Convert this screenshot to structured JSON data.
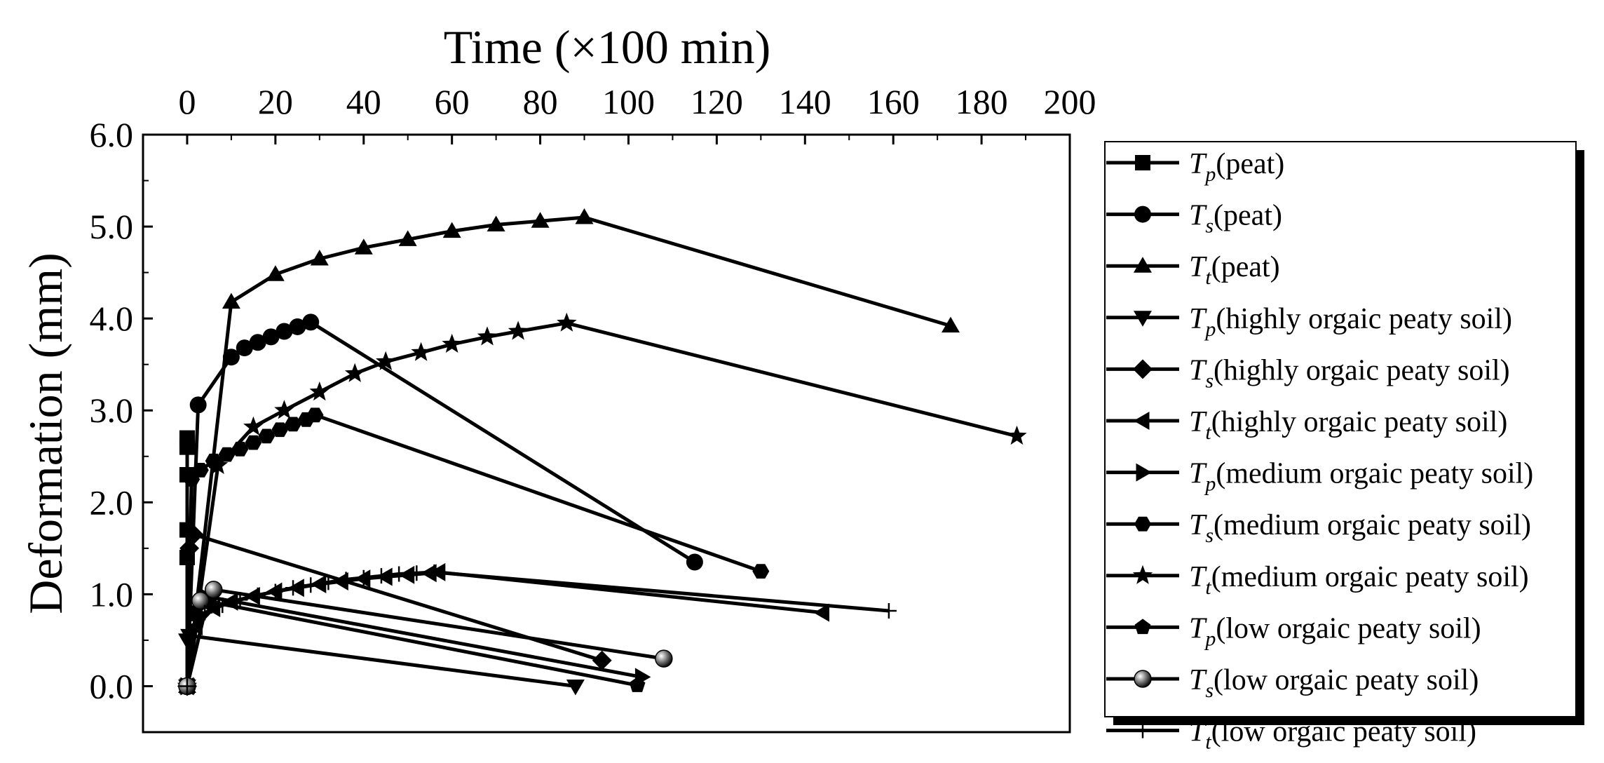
{
  "chart_data": {
    "type": "line",
    "title": "",
    "xlabel": "Time (×100 min)",
    "ylabel": "Deformation (mm)",
    "xlim": [
      -10,
      200
    ],
    "ylim": [
      -0.5,
      6.0
    ],
    "xticks": [
      0,
      20,
      40,
      60,
      80,
      100,
      120,
      140,
      160,
      180,
      200
    ],
    "xtick_labels": [
      "0",
      "20",
      "40",
      "60",
      "80",
      "100",
      "120",
      "140",
      "160",
      "180",
      "200"
    ],
    "yticks": [
      0,
      1,
      2,
      3,
      4,
      5,
      6
    ],
    "ytick_labels": [
      "0.0",
      "1.0",
      "2.0",
      "3.0",
      "4.0",
      "5.0",
      "6.0"
    ],
    "x_axis_position": "top",
    "legend_position": "right",
    "grid": false,
    "series": [
      {
        "name": "Tp(peat)",
        "symbol": "T",
        "subscript": "p",
        "label": "(peat)",
        "marker": "square",
        "x": [
          0,
          0,
          0,
          0,
          0,
          0
        ],
        "y": [
          0,
          1.4,
          1.7,
          2.3,
          2.6,
          2.7
        ]
      },
      {
        "name": "Ts(peat)",
        "symbol": "T",
        "subscript": "s",
        "label": "(peat)",
        "marker": "circle",
        "x": [
          0,
          2.5,
          10,
          13,
          16,
          19,
          22,
          25,
          28,
          115
        ],
        "y": [
          0,
          3.06,
          3.58,
          3.68,
          3.74,
          3.8,
          3.86,
          3.91,
          3.96,
          1.35
        ]
      },
      {
        "name": "Tt(peat)",
        "symbol": "T",
        "subscript": "t",
        "label": "(peat)",
        "marker": "triangle-up",
        "x": [
          0,
          10,
          20,
          30,
          40,
          50,
          60,
          70,
          80,
          90,
          173
        ],
        "y": [
          0,
          4.18,
          4.48,
          4.65,
          4.77,
          4.86,
          4.95,
          5.02,
          5.06,
          5.1,
          3.92
        ]
      },
      {
        "name": "Tp(highly orgaic peaty soil)",
        "symbol": "T",
        "subscript": "p",
        "label": "(highly orgaic peaty soil)",
        "marker": "triangle-down",
        "x": [
          0,
          0,
          0.5,
          88
        ],
        "y": [
          0,
          0.5,
          0.55,
          0
        ]
      },
      {
        "name": "Ts(highly orgaic peaty soil)",
        "symbol": "T",
        "subscript": "s",
        "label": "(highly orgaic peaty soil)",
        "marker": "diamond",
        "x": [
          0,
          0.5,
          1.5,
          94
        ],
        "y": [
          0,
          1.5,
          1.65,
          0.28
        ]
      },
      {
        "name": "Tt(highly orgaic peaty soil)",
        "symbol": "T",
        "subscript": "t",
        "label": "(highly orgaic peaty soil)",
        "marker": "triangle-left",
        "x": [
          0,
          2,
          6,
          10,
          15,
          20,
          25,
          30,
          35,
          40,
          45,
          50,
          55,
          57,
          144
        ],
        "y": [
          0,
          0.65,
          0.85,
          0.92,
          0.98,
          1.03,
          1.07,
          1.11,
          1.14,
          1.17,
          1.19,
          1.21,
          1.23,
          1.24,
          0.8
        ]
      },
      {
        "name": "Tp(medium orgaic peaty soil)",
        "symbol": "T",
        "subscript": "p",
        "label": "(medium orgaic peaty soil)",
        "marker": "triangle-right",
        "x": [
          0,
          2,
          4,
          103
        ],
        "y": [
          0,
          0.8,
          0.98,
          0.1
        ]
      },
      {
        "name": "Ts(medium orgaic peaty soil)",
        "symbol": "T",
        "subscript": "s",
        "label": "(medium orgaic peaty soil)",
        "marker": "hexagon",
        "x": [
          0,
          1,
          3,
          6,
          9,
          12,
          15,
          18,
          21,
          24,
          27,
          29,
          130
        ],
        "y": [
          0,
          2.25,
          2.35,
          2.45,
          2.52,
          2.58,
          2.65,
          2.72,
          2.79,
          2.85,
          2.9,
          2.95,
          1.25
        ]
      },
      {
        "name": "Tt(medium orgaic peaty soil)",
        "symbol": "T",
        "subscript": "t",
        "label": "(medium orgaic peaty soil)",
        "marker": "star",
        "x": [
          0,
          7,
          15,
          22,
          30,
          38,
          45,
          53,
          60,
          68,
          75,
          86,
          188
        ],
        "y": [
          0,
          2.4,
          2.82,
          3.0,
          3.2,
          3.4,
          3.53,
          3.63,
          3.72,
          3.8,
          3.86,
          3.95,
          2.72
        ]
      },
      {
        "name": "Tp(low orgaic peaty soil)",
        "symbol": "T",
        "subscript": "p",
        "label": "(low orgaic peaty soil)",
        "marker": "pentagon",
        "x": [
          0,
          2,
          5,
          102
        ],
        "y": [
          0,
          0.78,
          0.92,
          0.01
        ]
      },
      {
        "name": "Ts(low orgaic peaty soil)",
        "symbol": "T",
        "subscript": "s",
        "label": "(low orgaic peaty soil)",
        "marker": "sphere",
        "x": [
          0,
          3,
          6,
          108
        ],
        "y": [
          0,
          0.93,
          1.05,
          0.3
        ]
      },
      {
        "name": "Tt(low orgaic peaty soil)",
        "symbol": "T",
        "subscript": "t",
        "label": "(low orgaic peaty soil)",
        "marker": "plus",
        "x": [
          0,
          4,
          8,
          12,
          16,
          20,
          24,
          28,
          32,
          36,
          40,
          44,
          48,
          52,
          56,
          159
        ],
        "y": [
          0,
          0.8,
          0.88,
          0.94,
          0.99,
          1.03,
          1.07,
          1.1,
          1.13,
          1.16,
          1.18,
          1.2,
          1.22,
          1.23,
          1.24,
          0.82
        ]
      }
    ]
  }
}
